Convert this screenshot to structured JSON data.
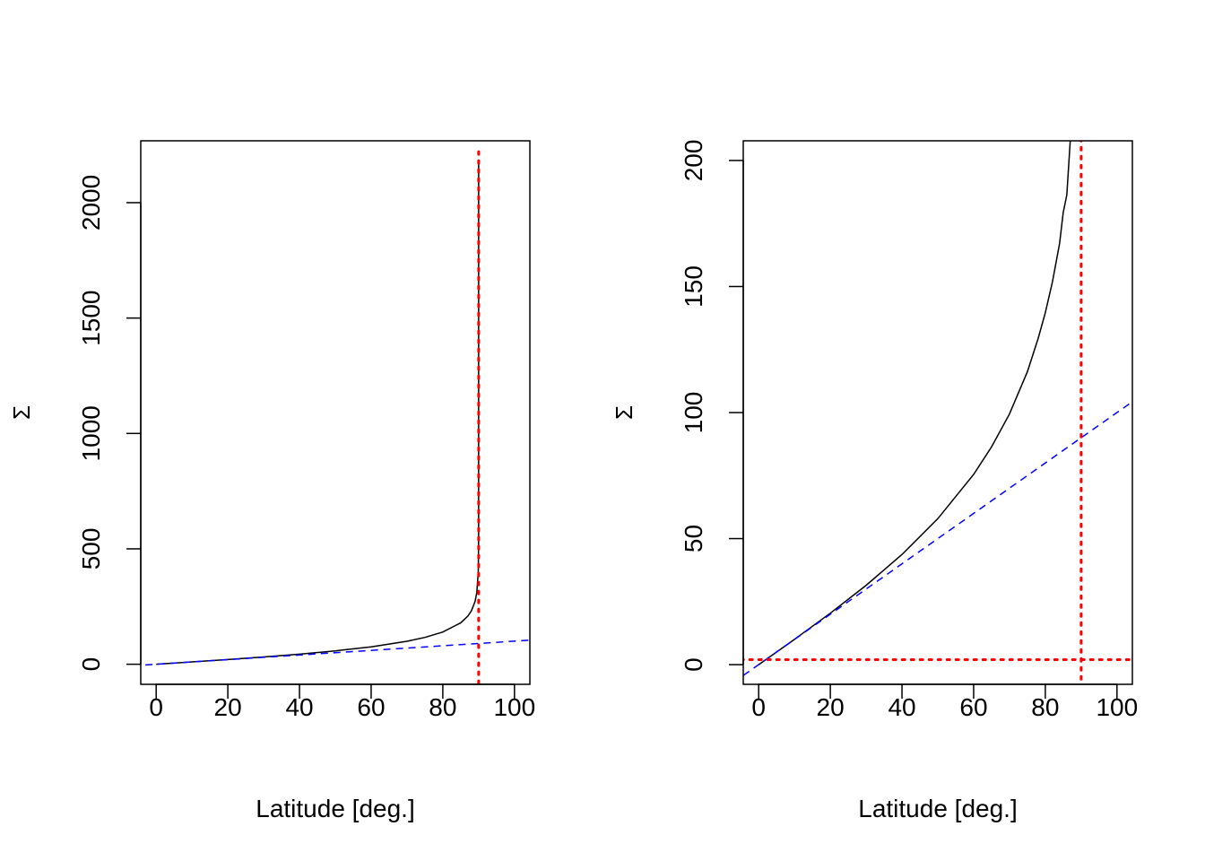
{
  "chart_data": [
    {
      "type": "line",
      "title": "",
      "xlabel": "Latitude [deg.]",
      "ylabel": "Σ",
      "xlim": [
        -4.3,
        104.3
      ],
      "ylim": [
        -87,
        2268
      ],
      "xticks": [
        0,
        20,
        40,
        60,
        80,
        100
      ],
      "yticks": [
        0,
        500,
        1000,
        1500,
        2000
      ],
      "xtick_labels": [
        "0",
        "20",
        "40",
        "60",
        "80",
        "100"
      ],
      "ytick_labels": [
        "0",
        "500",
        "1000",
        "1500",
        "2000"
      ],
      "grid": false,
      "series": [
        {
          "name": "mercator",
          "color": "#000000",
          "style": "solid",
          "x": [
            0,
            10,
            20,
            30,
            40,
            50,
            60,
            70,
            75,
            80,
            85,
            87,
            88,
            89,
            89.5,
            89.9,
            89.99,
            90
          ],
          "y": [
            0,
            10.05,
            20.42,
            31.47,
            43.71,
            57.91,
            75.46,
            99.43,
            116.2,
            139.6,
            179.4,
            208.7,
            231.9,
            271.7,
            311.4,
            403.6,
            535.5,
            2186
          ]
        },
        {
          "name": "identity",
          "color": "#0000ff",
          "style": "dashed",
          "x": [
            -10,
            110
          ],
          "y": [
            -10,
            110
          ]
        },
        {
          "name": "x=90",
          "color": "#ff0000",
          "style": "dotted",
          "x": [
            90,
            90
          ],
          "y": [
            -200,
            2230
          ]
        }
      ]
    },
    {
      "type": "line",
      "title": "",
      "xlabel": "Latitude [deg.]",
      "ylabel": "Σ",
      "xlim": [
        -4.3,
        104.3
      ],
      "ylim": [
        -7.8,
        207.8
      ],
      "xticks": [
        0,
        20,
        40,
        60,
        80,
        100
      ],
      "yticks": [
        0,
        50,
        100,
        150,
        200
      ],
      "xtick_labels": [
        "0",
        "20",
        "40",
        "60",
        "80",
        "100"
      ],
      "ytick_labels": [
        "0",
        "50",
        "100",
        "150",
        "200"
      ],
      "grid": false,
      "series": [
        {
          "name": "mercator",
          "color": "#000000",
          "style": "solid",
          "x": [
            0,
            10,
            20,
            30,
            40,
            50,
            60,
            65,
            70,
            75,
            78,
            80,
            82,
            84,
            85,
            86,
            87,
            88
          ],
          "y": [
            0,
            10.05,
            20.42,
            31.47,
            43.71,
            57.91,
            75.46,
            86.4,
            99.43,
            116.2,
            129.4,
            139.6,
            151.9,
            167.2,
            179.4,
            186.3,
            208.7,
            231.9
          ]
        },
        {
          "name": "identity",
          "color": "#0000ff",
          "style": "dashed",
          "x": [
            -10,
            110
          ],
          "y": [
            -10,
            110
          ]
        },
        {
          "name": "x=90",
          "color": "#ff0000",
          "style": "dotted",
          "x": [
            90,
            90
          ],
          "y": [
            -20,
            220
          ]
        },
        {
          "name": "y=2",
          "color": "#ff0000",
          "style": "dotted",
          "x": [
            -10,
            110
          ],
          "y": [
            2,
            2
          ]
        }
      ]
    }
  ]
}
